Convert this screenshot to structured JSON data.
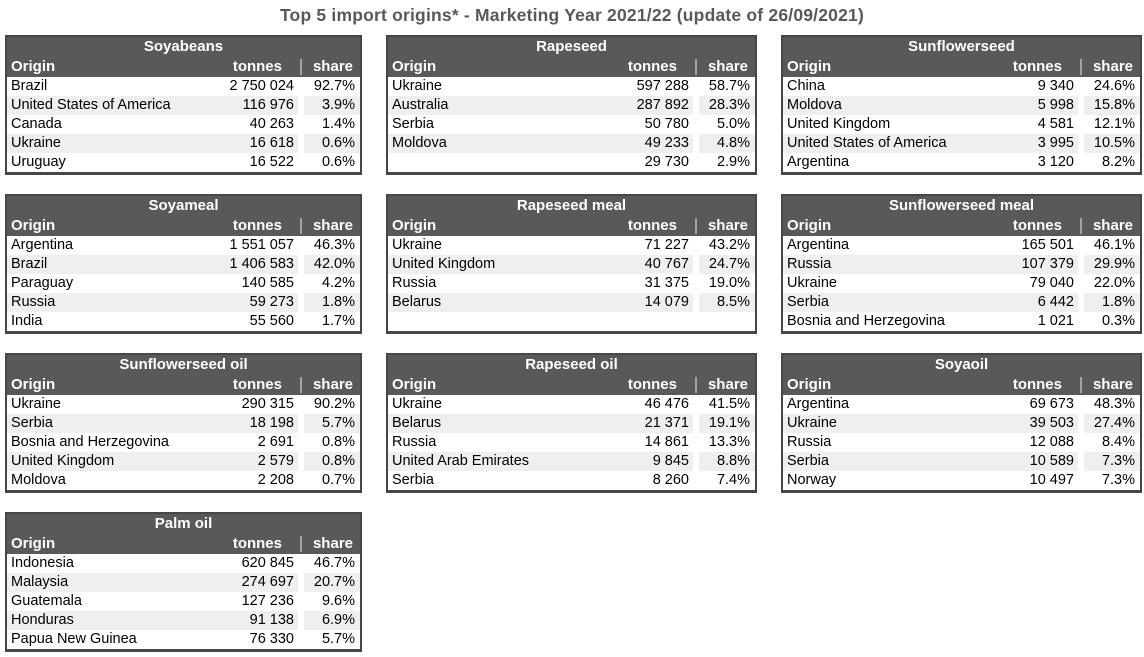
{
  "page_title": "Top 5 import origins* - Marketing Year 2021/22 (update of 26/09/2021)",
  "columns": [
    "Origin",
    "tonnes",
    "share"
  ],
  "colors": {
    "header_bg": "#595959",
    "header_text": "#ffffff",
    "title_text": "#595959",
    "stripe_row": "#efefef",
    "table_border": "#474747",
    "body_text": "#000000"
  },
  "chart_data": [
    {
      "type": "table",
      "name": "Soyabeans",
      "columns": [
        "Origin",
        "tonnes",
        "share"
      ],
      "rows": [
        [
          "Brazil",
          "2 750 024",
          "92.7%"
        ],
        [
          "United States of America",
          "116 976",
          "3.9%"
        ],
        [
          "Canada",
          "40 263",
          "1.4%"
        ],
        [
          "Ukraine",
          "16 618",
          "0.6%"
        ],
        [
          "Uruguay",
          "16 522",
          "0.6%"
        ]
      ]
    },
    {
      "type": "table",
      "name": "Rapeseed",
      "columns": [
        "Origin",
        "tonnes",
        "share"
      ],
      "rows": [
        [
          "Ukraine",
          "597 288",
          "58.7%"
        ],
        [
          "Australia",
          "287 892",
          "28.3%"
        ],
        [
          "Serbia",
          "50 780",
          "5.0%"
        ],
        [
          "Moldova",
          "49 233",
          "4.8%"
        ],
        [
          "",
          "29 730",
          "2.9%"
        ]
      ]
    },
    {
      "type": "table",
      "name": "Sunflowerseed",
      "columns": [
        "Origin",
        "tonnes",
        "share"
      ],
      "rows": [
        [
          "China",
          "9 340",
          "24.6%"
        ],
        [
          "Moldova",
          "5 998",
          "15.8%"
        ],
        [
          "United Kingdom",
          "4 581",
          "12.1%"
        ],
        [
          "United States of America",
          "3 995",
          "10.5%"
        ],
        [
          "Argentina",
          "3 120",
          "8.2%"
        ]
      ]
    },
    {
      "type": "table",
      "name": "Soyameal",
      "columns": [
        "Origin",
        "tonnes",
        "share"
      ],
      "rows": [
        [
          "Argentina",
          "1 551 057",
          "46.3%"
        ],
        [
          "Brazil",
          "1 406 583",
          "42.0%"
        ],
        [
          "Paraguay",
          "140 585",
          "4.2%"
        ],
        [
          "Russia",
          "59 273",
          "1.8%"
        ],
        [
          "India",
          "55 560",
          "1.7%"
        ]
      ]
    },
    {
      "type": "table",
      "name": "Rapeseed meal",
      "columns": [
        "Origin",
        "tonnes",
        "share"
      ],
      "rows": [
        [
          "Ukraine",
          "71 227",
          "43.2%"
        ],
        [
          "United Kingdom",
          "40 767",
          "24.7%"
        ],
        [
          "Russia",
          "31 375",
          "19.0%"
        ],
        [
          "Belarus",
          "14 079",
          "8.5%"
        ],
        [
          "",
          "",
          ""
        ]
      ]
    },
    {
      "type": "table",
      "name": "Sunflowerseed meal",
      "columns": [
        "Origin",
        "tonnes",
        "share"
      ],
      "rows": [
        [
          "Argentina",
          "165 501",
          "46.1%"
        ],
        [
          "Russia",
          "107 379",
          "29.9%"
        ],
        [
          "Ukraine",
          "79 040",
          "22.0%"
        ],
        [
          "Serbia",
          "6 442",
          "1.8%"
        ],
        [
          "Bosnia and Herzegovina",
          "1 021",
          "0.3%"
        ]
      ]
    },
    {
      "type": "table",
      "name": "Sunflowerseed oil",
      "columns": [
        "Origin",
        "tonnes",
        "share"
      ],
      "rows": [
        [
          "Ukraine",
          "290 315",
          "90.2%"
        ],
        [
          "Serbia",
          "18 198",
          "5.7%"
        ],
        [
          "Bosnia and Herzegovina",
          "2 691",
          "0.8%"
        ],
        [
          "United Kingdom",
          "2 579",
          "0.8%"
        ],
        [
          "Moldova",
          "2 208",
          "0.7%"
        ]
      ]
    },
    {
      "type": "table",
      "name": "Rapeseed oil",
      "columns": [
        "Origin",
        "tonnes",
        "share"
      ],
      "rows": [
        [
          "Ukraine",
          "46 476",
          "41.5%"
        ],
        [
          "Belarus",
          "21 371",
          "19.1%"
        ],
        [
          "Russia",
          "14 861",
          "13.3%"
        ],
        [
          "United Arab Emirates",
          "9 845",
          "8.8%"
        ],
        [
          "Serbia",
          "8 260",
          "7.4%"
        ]
      ]
    },
    {
      "type": "table",
      "name": "Soyaoil",
      "columns": [
        "Origin",
        "tonnes",
        "share"
      ],
      "rows": [
        [
          "Argentina",
          "69 673",
          "48.3%"
        ],
        [
          "Ukraine",
          "39 503",
          "27.4%"
        ],
        [
          "Russia",
          "12 088",
          "8.4%"
        ],
        [
          "Serbia",
          "10 589",
          "7.3%"
        ],
        [
          "Norway",
          "10 497",
          "7.3%"
        ]
      ]
    },
    {
      "type": "table",
      "name": "Palm oil",
      "columns": [
        "Origin",
        "tonnes",
        "share"
      ],
      "rows": [
        [
          "Indonesia",
          "620 845",
          "46.7%"
        ],
        [
          "Malaysia",
          "274 697",
          "20.7%"
        ],
        [
          "Guatemala",
          "127 236",
          "9.6%"
        ],
        [
          "Honduras",
          "91 138",
          "6.9%"
        ],
        [
          "Papua New Guinea",
          "76 330",
          "5.7%"
        ]
      ]
    }
  ]
}
